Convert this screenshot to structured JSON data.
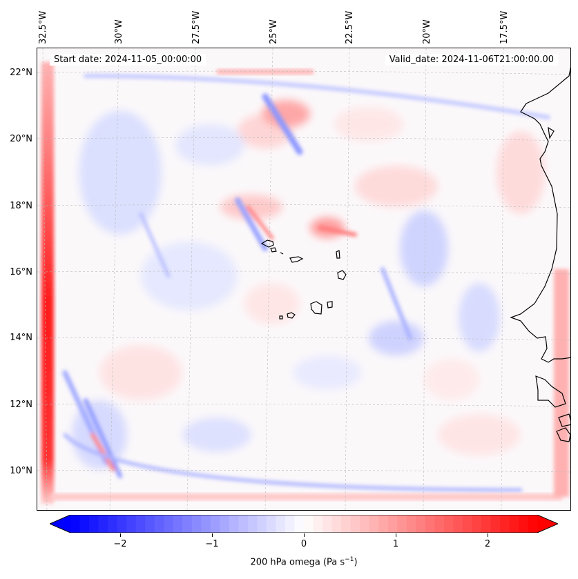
{
  "map": {
    "start_date": "Start date: 2024-11-05_00:00:00",
    "valid_date": "Valid_date: 2024-11-06T21:00:00.00",
    "lon_labels": [
      "32.5°W",
      "30°W",
      "27.5°W",
      "25°W",
      "22.5°W",
      "20°W",
      "17.5°W"
    ],
    "lat_labels": [
      "22°N",
      "20°N",
      "18°N",
      "16°N",
      "14°N",
      "12°N",
      "10°N"
    ],
    "field": "200 hPa omega",
    "colors": {
      "negative": "#0000ff",
      "positive": "#ff0000",
      "neutral": "#ffffff",
      "coast": "#000000"
    }
  },
  "colorbar": {
    "ticks": [
      "−2",
      "−1",
      "0",
      "1",
      "2"
    ],
    "tick_values": [
      -2,
      -1,
      0,
      1,
      2
    ],
    "range": [
      -2.5,
      2.5
    ],
    "label_prefix": "200 hPa omega (Pa s",
    "label_exp": "−1",
    "label_suffix": ")"
  }
}
